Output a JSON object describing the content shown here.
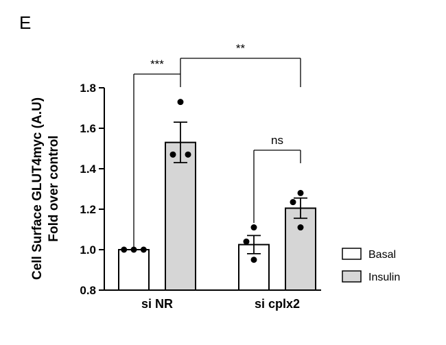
{
  "panel_label": "E",
  "chart_data": {
    "type": "bar",
    "title": "",
    "xlabel": "",
    "ylabel_lines": [
      "Cell Surface GLUT4myc (A.U)",
      "Fold over control"
    ],
    "ylim": [
      0.8,
      1.8
    ],
    "yticks": [
      "0.8",
      "1.0",
      "1.2",
      "1.4",
      "1.6",
      "1.8"
    ],
    "categories": [
      "si NR",
      "si cplx2"
    ],
    "series": [
      {
        "name": "Basal",
        "color": "#ffffff",
        "values": [
          1.0,
          1.025
        ],
        "errors": [
          0.0,
          0.045
        ],
        "points": [
          [
            1.0,
            1.0,
            1.0
          ],
          [
            1.11,
            1.04,
            0.95
          ]
        ]
      },
      {
        "name": "Insulin",
        "color": "#d6d6d6",
        "values": [
          1.53,
          1.205
        ],
        "errors": [
          0.1,
          0.05
        ],
        "points": [
          [
            1.73,
            1.47,
            1.47
          ],
          [
            1.28,
            1.235,
            1.11
          ]
        ]
      }
    ],
    "significance": [
      {
        "label": "***",
        "between": [
          [
            0,
            0
          ],
          [
            0,
            1
          ]
        ]
      },
      {
        "label": "**",
        "between": [
          [
            0,
            1
          ],
          [
            1,
            1
          ]
        ]
      },
      {
        "label": "ns",
        "between": [
          [
            1,
            0
          ],
          [
            1,
            1
          ]
        ]
      }
    ],
    "legend_position": "right"
  }
}
